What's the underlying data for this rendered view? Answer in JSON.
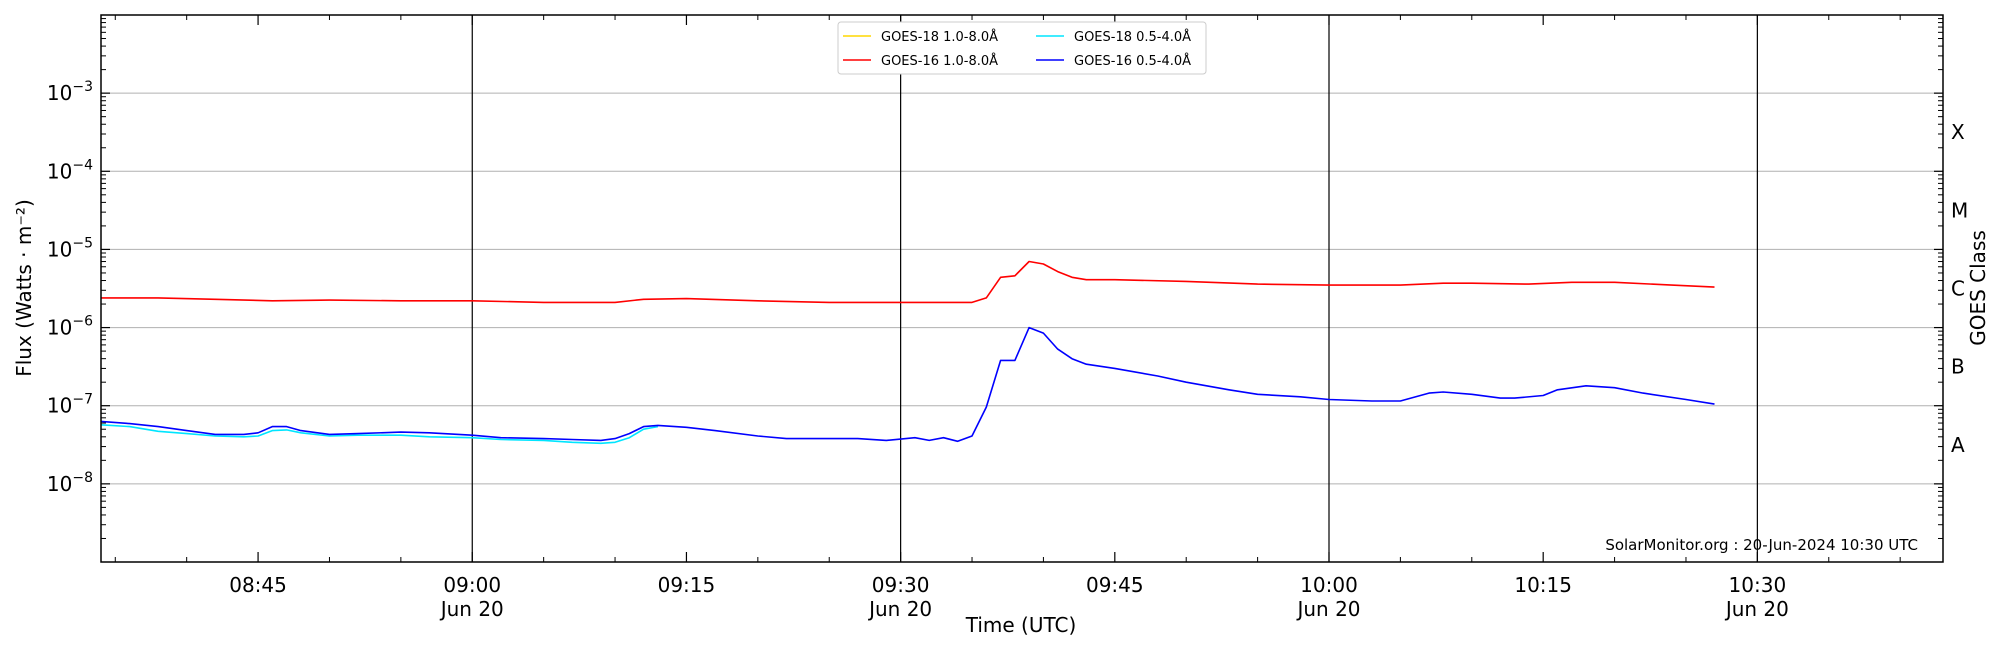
{
  "chart_data": {
    "type": "line",
    "y_scale": "log",
    "ylim": [
      1e-09,
      0.01
    ],
    "x_range": [
      "08:34",
      "10:43"
    ],
    "grid": {
      "horizontal": true,
      "vertical_at_half_hours": true
    },
    "legend_placement": "top-center",
    "ylabel": "Flux (Watts · m⁻²)",
    "xlabel": "Time (UTC)",
    "right_label": "GOES Class",
    "credit": "SolarMonitor.org : 20-Jun-2024 10:30 UTC",
    "y_ticks": [
      {
        "value": 1e-08,
        "base": "10",
        "exp": "−8"
      },
      {
        "value": 1e-07,
        "base": "10",
        "exp": "−7"
      },
      {
        "value": 1e-06,
        "base": "10",
        "exp": "−6"
      },
      {
        "value": 1e-05,
        "base": "10",
        "exp": "−5"
      },
      {
        "value": 0.0001,
        "base": "10",
        "exp": "−4"
      },
      {
        "value": 0.001,
        "base": "10",
        "exp": "−3"
      }
    ],
    "x_ticks": [
      {
        "time": "08:45",
        "label": "08:45",
        "sublabel": ""
      },
      {
        "time": "09:00",
        "label": "09:00",
        "sublabel": "Jun 20"
      },
      {
        "time": "09:15",
        "label": "09:15",
        "sublabel": ""
      },
      {
        "time": "09:30",
        "label": "09:30",
        "sublabel": "Jun 20"
      },
      {
        "time": "09:45",
        "label": "09:45",
        "sublabel": ""
      },
      {
        "time": "10:00",
        "label": "10:00",
        "sublabel": "Jun 20"
      },
      {
        "time": "10:15",
        "label": "10:15",
        "sublabel": ""
      },
      {
        "time": "10:30",
        "label": "10:30",
        "sublabel": "Jun 20"
      }
    ],
    "goes_classes": [
      {
        "label": "A",
        "value": 3.16e-08
      },
      {
        "label": "B",
        "value": 3.16e-07
      },
      {
        "label": "C",
        "value": 3.16e-06
      },
      {
        "label": "M",
        "value": 3.16e-05
      },
      {
        "label": "X",
        "value": 0.000316
      }
    ],
    "series": [
      {
        "name": "GOES-18 1.0-8.0Å",
        "color": "#ffd700",
        "points": []
      },
      {
        "name": "GOES-16 1.0-8.0Å",
        "color": "#ff0000",
        "points": [
          [
            "08:34",
            2.4e-06
          ],
          [
            "08:38",
            2.4e-06
          ],
          [
            "08:42",
            2.3e-06
          ],
          [
            "08:46",
            2.2e-06
          ],
          [
            "08:50",
            2.25e-06
          ],
          [
            "08:55",
            2.2e-06
          ],
          [
            "09:00",
            2.2e-06
          ],
          [
            "09:05",
            2.1e-06
          ],
          [
            "09:10",
            2.1e-06
          ],
          [
            "09:12",
            2.3e-06
          ],
          [
            "09:15",
            2.35e-06
          ],
          [
            "09:20",
            2.2e-06
          ],
          [
            "09:25",
            2.1e-06
          ],
          [
            "09:30",
            2.1e-06
          ],
          [
            "09:35",
            2.1e-06
          ],
          [
            "09:36",
            2.4e-06
          ],
          [
            "09:37",
            4.4e-06
          ],
          [
            "09:38",
            4.6e-06
          ],
          [
            "09:39",
            7e-06
          ],
          [
            "09:40",
            6.5e-06
          ],
          [
            "09:41",
            5.2e-06
          ],
          [
            "09:42",
            4.4e-06
          ],
          [
            "09:43",
            4.1e-06
          ],
          [
            "09:45",
            4.1e-06
          ],
          [
            "09:50",
            3.9e-06
          ],
          [
            "09:55",
            3.6e-06
          ],
          [
            "10:00",
            3.5e-06
          ],
          [
            "10:05",
            3.5e-06
          ],
          [
            "10:08",
            3.7e-06
          ],
          [
            "10:10",
            3.7e-06
          ],
          [
            "10:14",
            3.6e-06
          ],
          [
            "10:17",
            3.8e-06
          ],
          [
            "10:20",
            3.8e-06
          ],
          [
            "10:24",
            3.5e-06
          ],
          [
            "10:27",
            3.3e-06
          ]
        ]
      },
      {
        "name": "GOES-18 0.5-4.0Å",
        "color": "#00e5ff",
        "points": [
          [
            "08:34",
            5.7e-08
          ],
          [
            "08:36",
            5.4e-08
          ],
          [
            "08:38",
            4.7e-08
          ],
          [
            "08:40",
            4.4e-08
          ],
          [
            "08:42",
            4.1e-08
          ],
          [
            "08:44",
            4e-08
          ],
          [
            "08:45",
            4.1e-08
          ],
          [
            "08:46",
            4.8e-08
          ],
          [
            "08:47",
            4.9e-08
          ],
          [
            "08:48",
            4.5e-08
          ],
          [
            "08:50",
            4.1e-08
          ],
          [
            "08:52",
            4.2e-08
          ],
          [
            "08:55",
            4.2e-08
          ],
          [
            "08:57",
            4e-08
          ],
          [
            "09:00",
            3.9e-08
          ],
          [
            "09:02",
            3.7e-08
          ],
          [
            "09:05",
            3.6e-08
          ],
          [
            "09:07",
            3.4e-08
          ],
          [
            "09:09",
            3.3e-08
          ],
          [
            "09:10",
            3.4e-08
          ],
          [
            "09:11",
            3.9e-08
          ],
          [
            "09:12",
            5e-08
          ],
          [
            "09:13",
            5.4e-08
          ]
        ]
      },
      {
        "name": "GOES-16 0.5-4.0Å",
        "color": "#0000ff",
        "points": [
          [
            "08:34",
            6.3e-08
          ],
          [
            "08:36",
            5.9e-08
          ],
          [
            "08:38",
            5.4e-08
          ],
          [
            "08:40",
            4.8e-08
          ],
          [
            "08:42",
            4.3e-08
          ],
          [
            "08:44",
            4.3e-08
          ],
          [
            "08:45",
            4.5e-08
          ],
          [
            "08:46",
            5.4e-08
          ],
          [
            "08:47",
            5.4e-08
          ],
          [
            "08:48",
            4.8e-08
          ],
          [
            "08:50",
            4.3e-08
          ],
          [
            "08:52",
            4.4e-08
          ],
          [
            "08:55",
            4.6e-08
          ],
          [
            "08:57",
            4.5e-08
          ],
          [
            "09:00",
            4.2e-08
          ],
          [
            "09:02",
            3.9e-08
          ],
          [
            "09:05",
            3.8e-08
          ],
          [
            "09:07",
            3.7e-08
          ],
          [
            "09:09",
            3.6e-08
          ],
          [
            "09:10",
            3.8e-08
          ],
          [
            "09:11",
            4.4e-08
          ],
          [
            "09:12",
            5.4e-08
          ],
          [
            "09:13",
            5.6e-08
          ],
          [
            "09:15",
            5.3e-08
          ],
          [
            "09:17",
            4.8e-08
          ],
          [
            "09:20",
            4.1e-08
          ],
          [
            "09:22",
            3.8e-08
          ],
          [
            "09:25",
            3.8e-08
          ],
          [
            "09:27",
            3.8e-08
          ],
          [
            "09:29",
            3.6e-08
          ],
          [
            "09:31",
            3.9e-08
          ],
          [
            "09:32",
            3.6e-08
          ],
          [
            "09:33",
            3.9e-08
          ],
          [
            "09:34",
            3.5e-08
          ],
          [
            "09:35",
            4.1e-08
          ],
          [
            "09:36",
            9.6e-08
          ],
          [
            "09:37",
            3.8e-07
          ],
          [
            "09:38",
            3.8e-07
          ],
          [
            "09:39",
            1e-06
          ],
          [
            "09:40",
            8.5e-07
          ],
          [
            "09:41",
            5.3e-07
          ],
          [
            "09:42",
            4e-07
          ],
          [
            "09:43",
            3.4e-07
          ],
          [
            "09:45",
            3e-07
          ],
          [
            "09:48",
            2.4e-07
          ],
          [
            "09:50",
            2e-07
          ],
          [
            "09:53",
            1.6e-07
          ],
          [
            "09:55",
            1.4e-07
          ],
          [
            "09:58",
            1.3e-07
          ],
          [
            "10:00",
            1.2e-07
          ],
          [
            "10:03",
            1.15e-07
          ],
          [
            "10:05",
            1.15e-07
          ],
          [
            "10:07",
            1.45e-07
          ],
          [
            "10:08",
            1.5e-07
          ],
          [
            "10:10",
            1.4e-07
          ],
          [
            "10:12",
            1.25e-07
          ],
          [
            "10:13",
            1.25e-07
          ],
          [
            "10:15",
            1.35e-07
          ],
          [
            "10:16",
            1.6e-07
          ],
          [
            "10:18",
            1.8e-07
          ],
          [
            "10:20",
            1.7e-07
          ],
          [
            "10:22",
            1.45e-07
          ],
          [
            "10:25",
            1.2e-07
          ],
          [
            "10:27",
            1.05e-07
          ]
        ]
      }
    ]
  }
}
